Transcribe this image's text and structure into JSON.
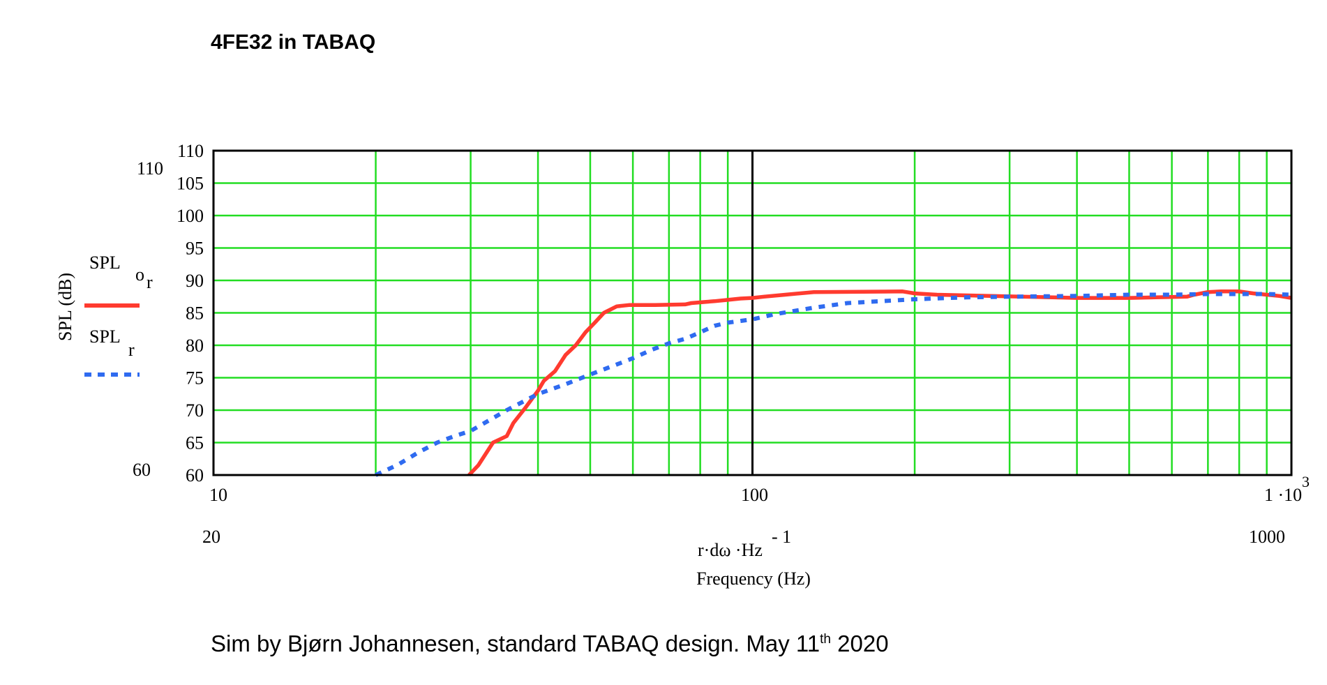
{
  "title": "4FE32 in TABAQ",
  "footer": {
    "text": "Sim by Bjørn Johannesen, standard TABAQ design. May 11",
    "sup": "th",
    "year": "2020"
  },
  "colors": {
    "grid": "#22dd22",
    "marker_line": "#000000",
    "series_or": "#ff3b2f",
    "series_r": "#2f6bf0",
    "frame": "#000000"
  },
  "legend": {
    "or_label": "SPL",
    "or_subscript": "o",
    "or_sub_r": "r",
    "r_label": "SPL",
    "r_subscript": "r"
  },
  "axis_text": {
    "ylabel": "SPL (dB)",
    "y_outer_top": "110",
    "y_outer_bottom": "60",
    "x_expr": "r·dω ·Hz",
    "x_expr_sup": "- 1",
    "xlabel": "Frequency (Hz)",
    "x_outer_left": "20",
    "x_outer_right": "1000",
    "x_tick_10": "10",
    "x_tick_100": "100",
    "x_tick_1000": "1 ·10",
    "x_tick_1000_sup": "3"
  },
  "chart_data": {
    "type": "line",
    "xscale": "log",
    "xlim": [
      10,
      1000
    ],
    "ylim": [
      60,
      110
    ],
    "yticks": [
      60,
      65,
      70,
      75,
      80,
      85,
      90,
      95,
      100,
      105,
      110
    ],
    "grid": true,
    "marker_x": 100,
    "series": [
      {
        "name": "SPL o r",
        "style": "solid",
        "x": [
          29.8,
          31,
          33,
          35,
          36,
          38,
          40,
          41,
          43,
          45,
          47,
          49,
          51,
          53,
          56,
          59,
          66,
          75,
          77,
          82,
          85,
          90,
          95,
          100,
          105,
          115,
          130,
          190,
          200,
          220,
          400,
          500,
          640,
          660,
          700,
          740,
          800,
          850,
          900,
          950,
          1000
        ],
        "y": [
          60,
          61.5,
          65,
          66,
          68,
          70.5,
          73,
          74.5,
          76,
          78.5,
          80,
          82,
          83.5,
          85,
          86,
          86.2,
          86.2,
          86.3,
          86.5,
          86.7,
          86.8,
          87,
          87.2,
          87.3,
          87.5,
          87.8,
          88.2,
          88.3,
          88,
          87.8,
          87.3,
          87.3,
          87.5,
          87.8,
          88.2,
          88.3,
          88.3,
          88,
          87.8,
          87.6,
          87.3
        ]
      },
      {
        "name": "SPL r",
        "style": "dotted",
        "x": [
          20,
          22,
          24,
          26,
          28,
          30,
          35,
          40,
          45,
          50,
          55,
          60,
          65,
          70,
          75,
          80,
          85,
          90,
          100,
          110,
          130,
          150,
          200,
          250,
          300,
          400,
          500,
          600,
          700,
          800,
          900,
          1000
        ],
        "y": [
          60,
          61.6,
          63.5,
          65,
          66,
          66.8,
          70,
          72.5,
          74,
          75.5,
          76.8,
          78,
          79.3,
          80.3,
          81,
          82,
          83,
          83.5,
          84,
          84.8,
          85.8,
          86.5,
          87.1,
          87.4,
          87.5,
          87.6,
          87.8,
          87.8,
          87.9,
          87.9,
          87.9,
          87.8
        ]
      }
    ]
  }
}
